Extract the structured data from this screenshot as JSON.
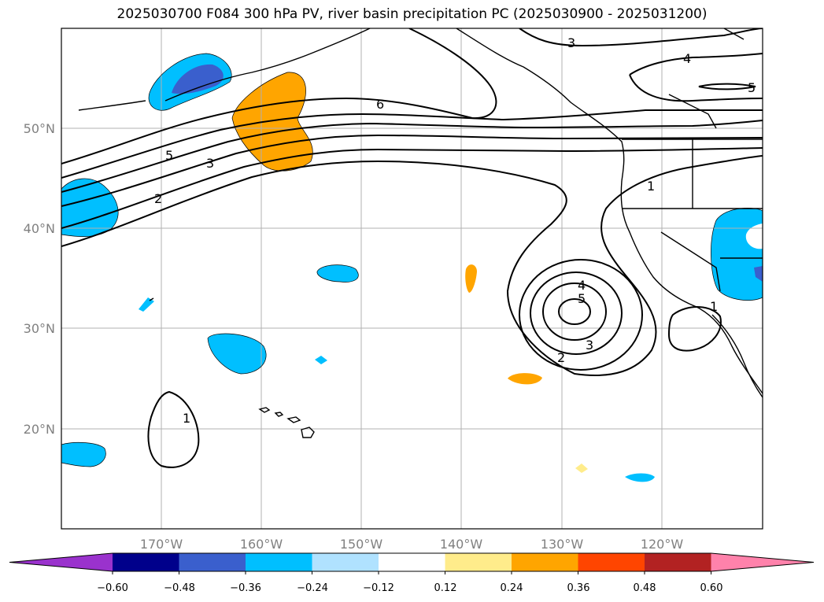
{
  "title": "2025030700 F084 300 hPa PV, river basin precipitation PC (2025030900 - 2025031200)",
  "map": {
    "lat_labels": [
      "50°N",
      "40°N",
      "30°N",
      "20°N"
    ],
    "lon_labels": [
      "170°W",
      "160°W",
      "150°W",
      "140°W",
      "130°W",
      "120°W"
    ],
    "contour_labels": [
      "6",
      "5",
      "3",
      "2",
      "1",
      "4",
      "5",
      "3",
      "2",
      "1",
      "3",
      "4",
      "5",
      "1"
    ]
  },
  "colorbar": {
    "tick_labels": [
      "−0.60",
      "−0.48",
      "−0.36",
      "−0.24",
      "−0.12",
      "0.12",
      "0.24",
      "0.36",
      "0.48",
      "0.60"
    ],
    "colors": [
      "#9a32cd",
      "#00008b",
      "#3a5fcd",
      "#00bfff",
      "#b0e2ff",
      "#ffffff",
      "#ffec8b",
      "#ffa500",
      "#ff4500",
      "#b22222",
      "#ff82ab"
    ]
  }
}
